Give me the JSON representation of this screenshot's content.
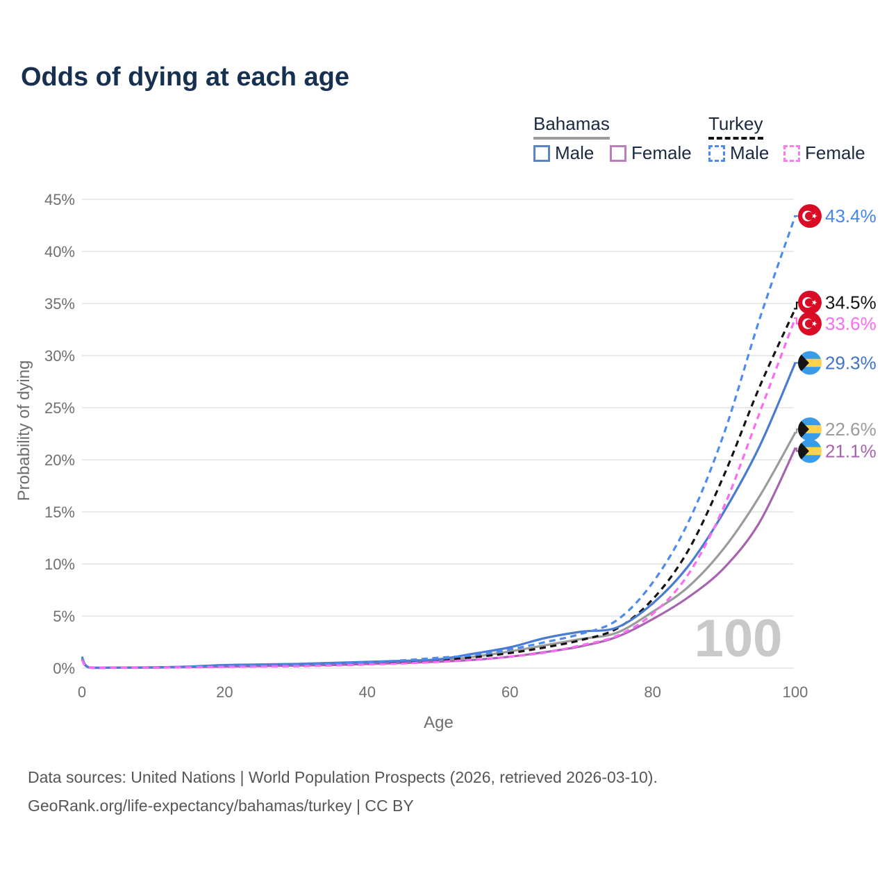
{
  "title": "Odds of dying at each age",
  "watermark": "100",
  "legend": {
    "groups": [
      {
        "country": "Bahamas",
        "line_style": "solid",
        "underline_color": "#9b9b9b",
        "items": [
          {
            "label": "Male",
            "box_color": "#5b84c4"
          },
          {
            "label": "Female",
            "box_color": "#bd7cbe"
          }
        ]
      },
      {
        "country": "Turkey",
        "line_style": "dashed",
        "underline_color": "#141414",
        "items": [
          {
            "label": "Male",
            "box_color": "#4d8bf0"
          },
          {
            "label": "Female",
            "box_color": "#fb7bf0"
          }
        ]
      }
    ]
  },
  "footer": {
    "line1": "Data sources: United Nations | World Population Prospects (2026, retrieved 2026-03-10).",
    "line2": "GeoRank.org/life-expectancy/bahamas/turkey | CC BY"
  },
  "colors": {
    "grid": "#e9e9ec",
    "tick_text": "#6f6f6f",
    "axis_label_text": "#6f6f6f"
  },
  "flags": {
    "turkey": {
      "red": "#da0b25",
      "white": "#ffffff"
    },
    "bahamas": {
      "blue": "#3a9ce8",
      "yellow": "#ffd24a",
      "black": "#141414"
    }
  },
  "chart_data": {
    "type": "line",
    "title": "Odds of dying at each age",
    "xlabel": "Age",
    "ylabel": "Probability of dying",
    "xlim": [
      0,
      100
    ],
    "ylim": [
      0,
      45
    ],
    "grid": "horizontal-only",
    "legend_position": "top-right",
    "x_ticks": [
      {
        "value": 0,
        "label": "0"
      },
      {
        "value": 20,
        "label": "20"
      },
      {
        "value": 40,
        "label": "40"
      },
      {
        "value": 60,
        "label": "60"
      },
      {
        "value": 80,
        "label": "80"
      },
      {
        "value": 100,
        "label": "100"
      }
    ],
    "y_ticks": [
      {
        "value": 0,
        "label": "0%"
      },
      {
        "value": 5,
        "label": "5%"
      },
      {
        "value": 10,
        "label": "10%"
      },
      {
        "value": 15,
        "label": "15%"
      },
      {
        "value": 20,
        "label": "20%"
      },
      {
        "value": 25,
        "label": "25%"
      },
      {
        "value": 30,
        "label": "30%"
      },
      {
        "value": 35,
        "label": "35%"
      },
      {
        "value": 40,
        "label": "40%"
      },
      {
        "value": 45,
        "label": "45%"
      }
    ],
    "ages": [
      0,
      1,
      5,
      10,
      15,
      20,
      25,
      30,
      35,
      40,
      45,
      50,
      55,
      60,
      65,
      70,
      75,
      80,
      85,
      90,
      95,
      100
    ],
    "series": [
      {
        "name": "Turkey Male",
        "country": "Turkey",
        "sex": "Male",
        "line_style": "dashed",
        "color": "#4d8bf0",
        "label_color": "#4285f4",
        "end_label": "43.4%",
        "values": [
          0.9,
          0.06,
          0.05,
          0.07,
          0.12,
          0.2,
          0.25,
          0.3,
          0.4,
          0.55,
          0.75,
          1.0,
          1.25,
          1.8,
          2.5,
          3.3,
          4.6,
          8.2,
          14.0,
          22.5,
          33.5,
          43.4
        ]
      },
      {
        "name": "Turkey Both sexes",
        "country": "Turkey",
        "sex": "Both",
        "line_style": "dashed",
        "color": "#141414",
        "label_color": "#141414",
        "end_label": "34.5%",
        "values": [
          0.85,
          0.055,
          0.045,
          0.06,
          0.1,
          0.16,
          0.2,
          0.25,
          0.33,
          0.45,
          0.6,
          0.8,
          1.05,
          1.45,
          2.0,
          2.7,
          3.8,
          6.6,
          11.3,
          18.5,
          27.0,
          34.5
        ]
      },
      {
        "name": "Turkey Female",
        "country": "Turkey",
        "sex": "Female",
        "line_style": "dashed",
        "color": "#fb6bf3",
        "label_color": "#fb6bf3",
        "end_label": "33.6%",
        "values": [
          0.8,
          0.05,
          0.04,
          0.05,
          0.08,
          0.12,
          0.15,
          0.18,
          0.25,
          0.35,
          0.45,
          0.6,
          0.8,
          1.1,
          1.5,
          2.2,
          3.1,
          5.2,
          9.0,
          15.5,
          24.5,
          33.6
        ]
      },
      {
        "name": "Bahamas Male",
        "country": "Bahamas",
        "sex": "Male",
        "line_style": "solid",
        "color": "#4a7bd0",
        "label_color": "#3f72d0",
        "end_label": "29.3%",
        "values": [
          1.1,
          0.07,
          0.06,
          0.08,
          0.15,
          0.3,
          0.35,
          0.4,
          0.5,
          0.6,
          0.7,
          0.85,
          1.4,
          2.0,
          2.9,
          3.5,
          3.9,
          6.2,
          9.8,
          15.0,
          21.3,
          29.3
        ]
      },
      {
        "name": "Bahamas Both sexes",
        "country": "Bahamas",
        "sex": "Both",
        "line_style": "solid",
        "color": "#9b9b9b",
        "label_color": "#9b9b9b",
        "end_label": "22.6%",
        "values": [
          1.0,
          0.065,
          0.05,
          0.07,
          0.12,
          0.22,
          0.27,
          0.33,
          0.4,
          0.5,
          0.6,
          0.72,
          1.1,
          1.6,
          2.2,
          2.8,
          3.4,
          5.4,
          7.8,
          11.5,
          16.5,
          22.6
        ]
      },
      {
        "name": "Bahamas Female",
        "country": "Bahamas",
        "sex": "Female",
        "line_style": "solid",
        "color": "#a763ae",
        "label_color": "#a763ae",
        "end_label": "21.1%",
        "values": [
          0.9,
          0.06,
          0.045,
          0.06,
          0.1,
          0.15,
          0.2,
          0.25,
          0.3,
          0.4,
          0.5,
          0.62,
          0.8,
          1.1,
          1.55,
          2.1,
          3.0,
          4.7,
          6.8,
          9.6,
          14.0,
          21.1
        ]
      }
    ]
  }
}
